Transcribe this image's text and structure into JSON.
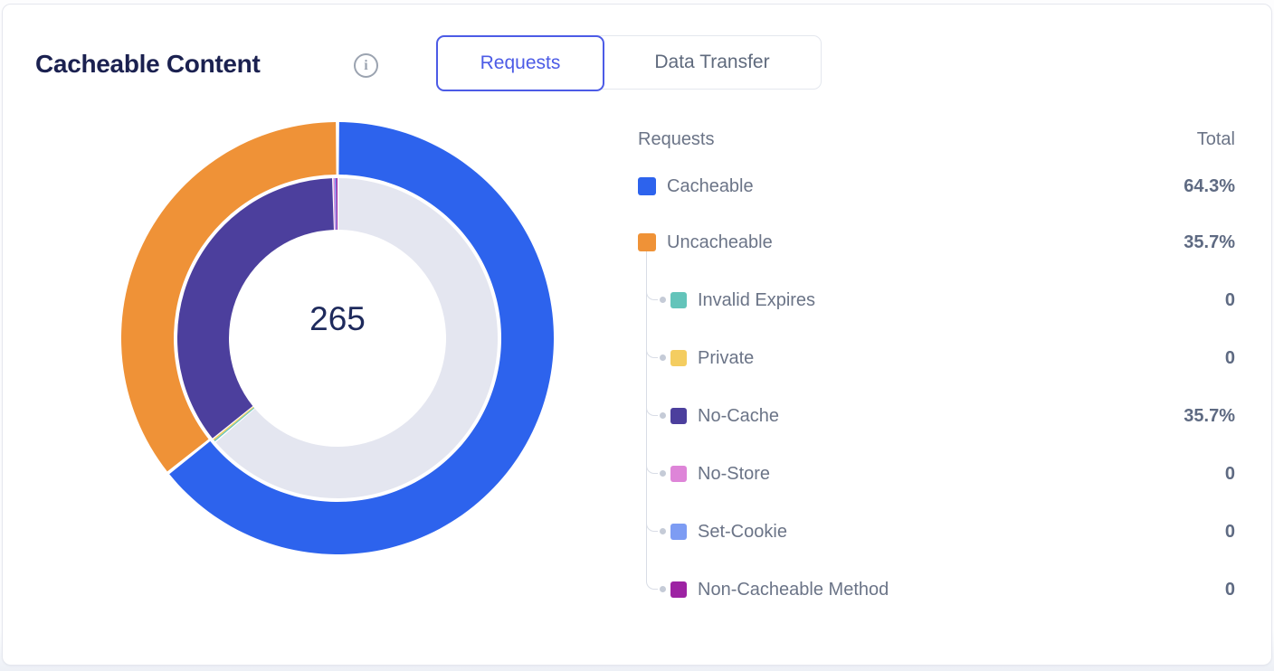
{
  "header": {
    "title": "Cacheable Content"
  },
  "icons": {
    "info_glyph": "i"
  },
  "tabs": [
    {
      "label": "Requests",
      "selected": true
    },
    {
      "label": "Data Transfer",
      "selected": false
    }
  ],
  "chart_data": {
    "type": "donut",
    "center_total": "265",
    "title": "Cacheable Content",
    "legend_position": "right",
    "rings": [
      {
        "name": "requests-split-outer",
        "segments": [
          {
            "label": "Cacheable",
            "value": 64.3,
            "color": "#2d63ed"
          },
          {
            "label": "Uncacheable",
            "value": 35.7,
            "color": "#ef9237"
          }
        ]
      },
      {
        "name": "uncacheable-breakdown-inner",
        "segments": [
          {
            "label": "Cacheable",
            "value": 64.3,
            "color": "#e4e6f0"
          },
          {
            "label": "Invalid Expires",
            "value": 0,
            "color": "#63c4ba"
          },
          {
            "label": "Private",
            "value": 0,
            "color": "#f4cd60"
          },
          {
            "label": "No-Cache",
            "value": 35.7,
            "color": "#4c3f9d"
          },
          {
            "label": "No-Store",
            "value": 0,
            "color": "#de85d8"
          },
          {
            "label": "Set-Cookie",
            "value": 0,
            "color": "#7d9cf3"
          },
          {
            "label": "Non-Cacheable Method",
            "value": 0,
            "color": "#9d23a3"
          }
        ]
      }
    ]
  },
  "legend": {
    "header_left": "Requests",
    "header_right": "Total",
    "items": [
      {
        "label": "Cacheable",
        "value": "64.3%",
        "color": "#2d63ed",
        "level": 0
      },
      {
        "label": "Uncacheable",
        "value": "35.7%",
        "color": "#ef9237",
        "level": 0
      },
      {
        "label": "Invalid Expires",
        "value": "0",
        "color": "#63c4ba",
        "level": 1
      },
      {
        "label": "Private",
        "value": "0",
        "color": "#f4cd60",
        "level": 1
      },
      {
        "label": "No-Cache",
        "value": "35.7%",
        "color": "#4c3f9d",
        "level": 1
      },
      {
        "label": "No-Store",
        "value": "0",
        "color": "#de85d8",
        "level": 1
      },
      {
        "label": "Set-Cookie",
        "value": "0",
        "color": "#7d9cf3",
        "level": 1
      },
      {
        "label": "Non-Cacheable Method",
        "value": "0",
        "color": "#9d23a3",
        "level": 1
      }
    ]
  }
}
